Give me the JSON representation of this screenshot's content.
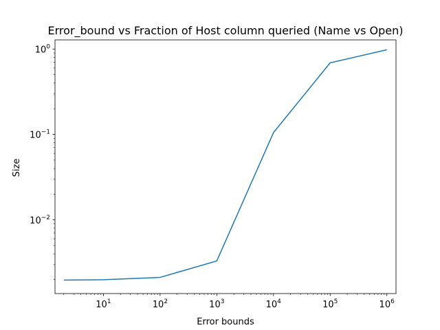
{
  "chart_data": {
    "type": "line",
    "title": "Error_bound vs Fraction of Host column queried (Name vs Open)",
    "xlabel": "Error bounds",
    "ylabel": "Size",
    "xscale": "log",
    "yscale": "log",
    "xlim": [
      1.4,
      1450000
    ],
    "ylim": [
      0.00137,
      1.28
    ],
    "grid": false,
    "legend": "none",
    "color": "#1f77b4",
    "x_ticks": [
      {
        "base": "10",
        "exp": "1"
      },
      {
        "base": "10",
        "exp": "2"
      },
      {
        "base": "10",
        "exp": "3"
      },
      {
        "base": "10",
        "exp": "4"
      },
      {
        "base": "10",
        "exp": "5"
      },
      {
        "base": "10",
        "exp": "6"
      }
    ],
    "y_ticks": [
      {
        "base": "10",
        "exp": "−2"
      },
      {
        "base": "10",
        "exp": "−1"
      },
      {
        "base": "10",
        "exp": "0"
      }
    ],
    "series": [
      {
        "x": [
          2,
          10,
          100,
          1000,
          10000,
          100000,
          1000000
        ],
        "y": [
          0.00197,
          0.00199,
          0.00212,
          0.0033,
          0.105,
          0.69,
          0.98
        ]
      }
    ]
  }
}
